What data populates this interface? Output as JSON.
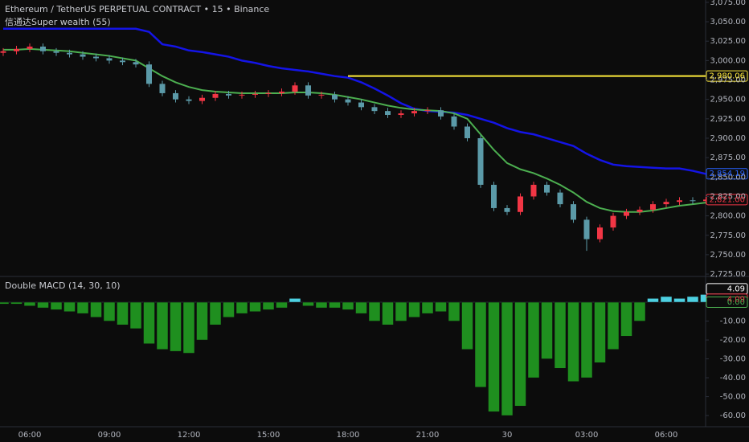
{
  "chart_data": [
    {
      "type": "candlestick",
      "title": "Ethereum / TetherUS PERPETUAL CONTRACT • 15 • Binance",
      "subtitle": "信通达Super wealth (55)",
      "categories": [
        null,
        null,
        "06:00",
        null,
        null,
        null,
        null,
        null,
        "09:00",
        null,
        null,
        null,
        null,
        null,
        "12:00",
        null,
        null,
        null,
        null,
        null,
        "15:00",
        null,
        null,
        null,
        null,
        null,
        "18:00",
        null,
        null,
        null,
        null,
        null,
        "21:00",
        null,
        null,
        null,
        null,
        null,
        "30",
        null,
        null,
        null,
        null,
        null,
        "03:00",
        null,
        null,
        null,
        null,
        null,
        "06:00",
        null,
        null,
        null
      ],
      "open": [
        3010,
        3012,
        3015,
        3018,
        3012,
        3010,
        3008,
        3005,
        3003,
        3000,
        2998,
        2995,
        2970,
        2958,
        2950,
        2948,
        2952,
        2957,
        2955,
        2956,
        2957,
        2958,
        2960,
        2968,
        2955,
        2956,
        2950,
        2946,
        2940,
        2935,
        2930,
        2932,
        2935,
        2936,
        2928,
        2915,
        2900,
        2840,
        2810,
        2805,
        2825,
        2840,
        2830,
        2815,
        2795,
        2770,
        2785,
        2800,
        2805,
        2808,
        2815,
        2818,
        2820,
        2819
      ],
      "high": [
        3016,
        3019,
        3022,
        3022,
        3016,
        3014,
        3012,
        3009,
        3007,
        3004,
        3002,
        2999,
        2974,
        2962,
        2954,
        2956,
        2961,
        2961,
        2960,
        2961,
        2962,
        2964,
        2972,
        2972,
        2960,
        2960,
        2954,
        2950,
        2944,
        2939,
        2936,
        2939,
        2940,
        2940,
        2932,
        2919,
        2904,
        2844,
        2814,
        2829,
        2844,
        2844,
        2834,
        2819,
        2799,
        2789,
        2804,
        2809,
        2812,
        2819,
        2822,
        2824,
        2824,
        2825
      ],
      "low": [
        3006,
        3008,
        3011,
        3008,
        3006,
        3004,
        3001,
        2999,
        2996,
        2994,
        2991,
        2966,
        2954,
        2946,
        2944,
        2944,
        2948,
        2951,
        2951,
        2952,
        2953,
        2954,
        2956,
        2951,
        2951,
        2946,
        2942,
        2936,
        2931,
        2926,
        2926,
        2928,
        2931,
        2924,
        2911,
        2896,
        2836,
        2806,
        2801,
        2801,
        2821,
        2826,
        2811,
        2791,
        2755,
        2766,
        2781,
        2796,
        2801,
        2804,
        2811,
        2814,
        2815,
        2815
      ],
      "close": [
        3012,
        3015,
        3018,
        3012,
        3010,
        3008,
        3005,
        3003,
        3000,
        2998,
        2995,
        2970,
        2958,
        2950,
        2948,
        2952,
        2957,
        2955,
        2956,
        2957,
        2958,
        2960,
        2968,
        2955,
        2956,
        2950,
        2946,
        2940,
        2935,
        2930,
        2932,
        2935,
        2936,
        2928,
        2915,
        2900,
        2840,
        2810,
        2805,
        2825,
        2840,
        2830,
        2815,
        2795,
        2770,
        2785,
        2800,
        2805,
        2808,
        2815,
        2818,
        2820,
        2819,
        2821
      ],
      "up_color": "#f23645",
      "down_color": "#5b9aa8",
      "series": [
        {
          "color": "#1414e6",
          "values": [
            3041,
            3041,
            3041,
            3041,
            3041,
            3041,
            3041,
            3041,
            3041,
            3041,
            3041,
            3037,
            3021,
            3018,
            3013,
            3011,
            3008,
            3005,
            3000,
            2997,
            2993,
            2990,
            2988,
            2986,
            2983,
            2980,
            2978,
            2972,
            2964,
            2955,
            2945,
            2938,
            2935,
            2934,
            2933,
            2930,
            2925,
            2920,
            2913,
            2908,
            2905,
            2900,
            2895,
            2890,
            2880,
            2872,
            2866,
            2864,
            2863,
            2862,
            2861,
            2861,
            2858,
            2854
          ]
        },
        {
          "color": "#4caf50",
          "values": [
            3014,
            3014,
            3015,
            3014,
            3013,
            3012,
            3010,
            3008,
            3006,
            3003,
            3000,
            2990,
            2980,
            2972,
            2966,
            2962,
            2960,
            2959,
            2958,
            2958,
            2958,
            2958,
            2959,
            2959,
            2958,
            2956,
            2953,
            2950,
            2946,
            2942,
            2939,
            2937,
            2936,
            2935,
            2932,
            2925,
            2905,
            2885,
            2868,
            2860,
            2855,
            2848,
            2840,
            2830,
            2818,
            2810,
            2806,
            2805,
            2805,
            2807,
            2810,
            2813,
            2815,
            2817
          ]
        }
      ],
      "tags": [
        {
          "value": 2980.06,
          "label": "2,980.06",
          "color": "#ffeb3b",
          "line": true
        },
        {
          "value": 2854.19,
          "label": "2,854.19",
          "color": "#2962ff"
        },
        {
          "value": 2821,
          "label": "2,821.00",
          "color": "#f23645"
        }
      ],
      "ylim": [
        2723,
        3078
      ],
      "yticks": [
        {
          "value": 2725,
          "label": "2,725.00"
        },
        {
          "value": 2750,
          "label": "2,750.00"
        },
        {
          "value": 2775,
          "label": "2,775.00"
        },
        {
          "value": 2800,
          "label": "2,800.00"
        },
        {
          "value": 2825,
          "label": "2,825.00"
        },
        {
          "value": 2850,
          "label": "2,850.00"
        },
        {
          "value": 2875,
          "label": "2,875.00"
        },
        {
          "value": 2900,
          "label": "2,900.00"
        },
        {
          "value": 2925,
          "label": "2,925.00"
        },
        {
          "value": 2950,
          "label": "2,950.00"
        },
        {
          "value": 2975,
          "label": "2,975.00"
        },
        {
          "value": 3000,
          "label": "3,000.00"
        },
        {
          "value": 3025,
          "label": "3,025.00"
        },
        {
          "value": 3050,
          "label": "3,050.00"
        },
        {
          "value": 3075,
          "label": "3,075.00"
        }
      ]
    },
    {
      "type": "bar",
      "title": "Double MACD (14, 30, 10)",
      "values": [
        -1,
        -1,
        -2,
        -3,
        -4,
        -5,
        -6,
        -8,
        -10,
        -12,
        -14,
        -22,
        -25,
        -26,
        -27,
        -20,
        -12,
        -8,
        -6,
        -5,
        -4,
        -3,
        2,
        -2,
        -3,
        -3,
        -4,
        -6,
        -10,
        -12,
        -10,
        -8,
        -6,
        -5,
        -10,
        -25,
        -45,
        -58,
        -60,
        -55,
        -40,
        -30,
        -35,
        -42,
        -40,
        -32,
        -25,
        -18,
        -10,
        2,
        3,
        2,
        3,
        4.09
      ],
      "color": "#1f8f1f",
      "positive_color": "#4dd0e1",
      "tags": [
        {
          "value": 4.09,
          "label": "4.09",
          "color": "#ffffff"
        },
        {
          "value": 4.09,
          "label": "4.09",
          "color": "#f23645"
        },
        {
          "value": 0,
          "label": "0.00",
          "color": "#4caf50"
        }
      ],
      "ylim": [
        -65.5,
        13.2
      ],
      "yticks": [
        {
          "value": -10,
          "label": "-10.00"
        },
        {
          "value": -20,
          "label": "-20.00"
        },
        {
          "value": -30,
          "label": "-30.00"
        },
        {
          "value": -40,
          "label": "-40.00"
        },
        {
          "value": -50,
          "label": "-50.00"
        },
        {
          "value": -60,
          "label": "-60.00"
        }
      ]
    }
  ]
}
